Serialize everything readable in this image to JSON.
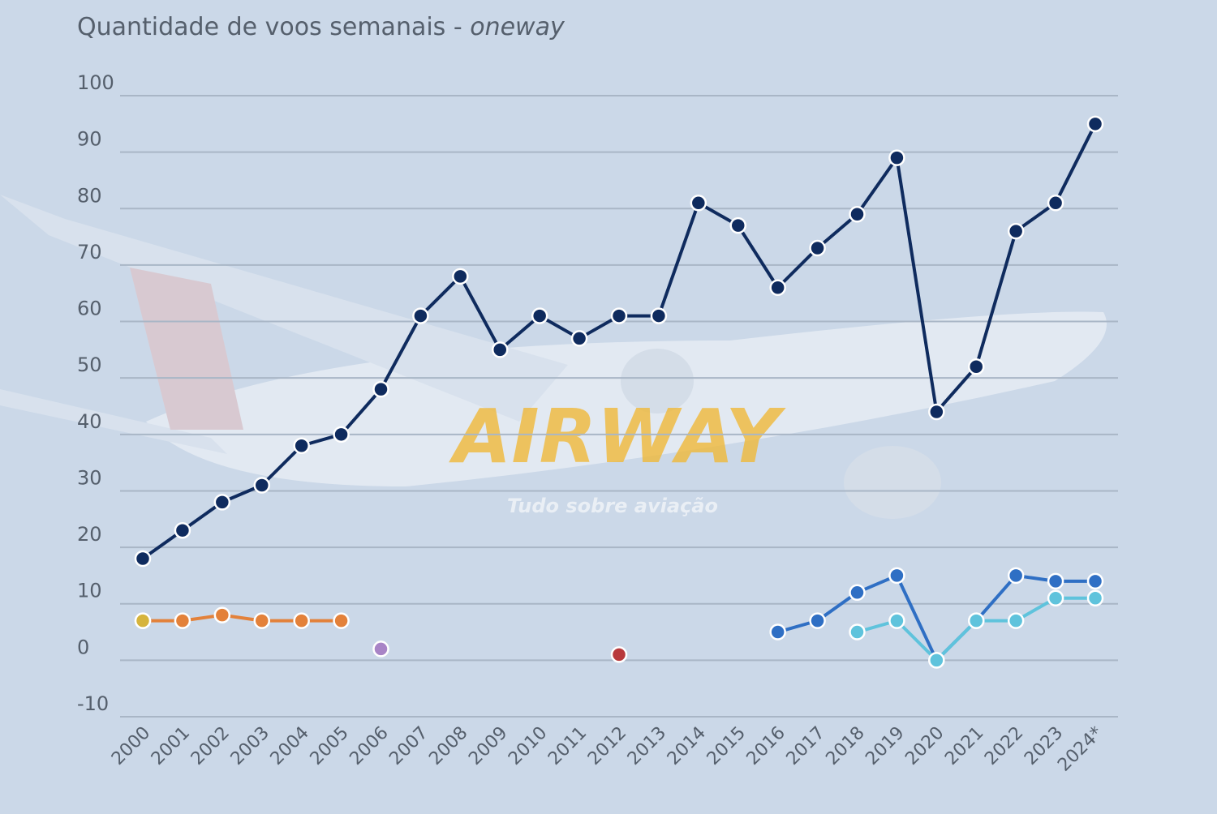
{
  "chart_data": {
    "type": "line",
    "title": "Quantidade de voos semanais -",
    "title_italic": "oneway",
    "annotations": [
      "AIRWAY",
      "Tudo sobre aviação"
    ],
    "categories": [
      "2000",
      "2001",
      "2002",
      "2003",
      "2004",
      "2005",
      "2006",
      "2007",
      "2008",
      "2009",
      "2010",
      "2011",
      "2012",
      "2013",
      "2014",
      "2015",
      "2016",
      "2017",
      "2018",
      "2019",
      "2020",
      "2021",
      "2022",
      "2023",
      "2024*"
    ],
    "ylim": [
      -10,
      100
    ],
    "yticks": [
      -10,
      0,
      10,
      20,
      30,
      40,
      50,
      60,
      70,
      80,
      90,
      100
    ],
    "grid": true,
    "series": [
      {
        "color": "#0f2b5e",
        "values": [
          18,
          23,
          28,
          31,
          38,
          40,
          48,
          61,
          68,
          55,
          61,
          57,
          61,
          61,
          81,
          77,
          66,
          73,
          79,
          89,
          44,
          52,
          76,
          81,
          95
        ]
      },
      {
        "color": "#e3813a",
        "values": [
          7,
          7,
          8,
          7,
          7,
          7,
          null,
          null,
          null,
          null,
          null,
          null,
          null,
          null,
          null,
          null,
          null,
          null,
          null,
          null,
          null,
          null,
          null,
          null,
          null
        ]
      },
      {
        "color": "#d6b43c",
        "values": [
          7,
          null,
          null,
          null,
          null,
          null,
          null,
          null,
          null,
          null,
          null,
          null,
          null,
          null,
          null,
          null,
          null,
          null,
          null,
          null,
          null,
          null,
          null,
          null,
          null
        ]
      },
      {
        "color": "#a884c6",
        "values": [
          null,
          null,
          null,
          null,
          null,
          null,
          2,
          null,
          null,
          null,
          null,
          null,
          null,
          null,
          null,
          null,
          null,
          null,
          null,
          null,
          null,
          null,
          null,
          null,
          null
        ]
      },
      {
        "color": "#b8393c",
        "values": [
          null,
          null,
          null,
          null,
          null,
          null,
          null,
          null,
          null,
          null,
          null,
          null,
          1,
          null,
          null,
          null,
          null,
          null,
          null,
          null,
          null,
          null,
          null,
          null,
          null
        ]
      },
      {
        "color": "#2f6fc4",
        "values": [
          null,
          null,
          null,
          null,
          null,
          null,
          null,
          null,
          null,
          null,
          null,
          null,
          null,
          null,
          null,
          null,
          5,
          7,
          12,
          15,
          0,
          7,
          15,
          14,
          14
        ]
      },
      {
        "color": "#5fc3dc",
        "values": [
          null,
          null,
          null,
          null,
          null,
          null,
          null,
          null,
          null,
          null,
          null,
          null,
          null,
          null,
          null,
          null,
          null,
          null,
          5,
          7,
          0,
          7,
          7,
          11,
          11
        ]
      }
    ]
  }
}
